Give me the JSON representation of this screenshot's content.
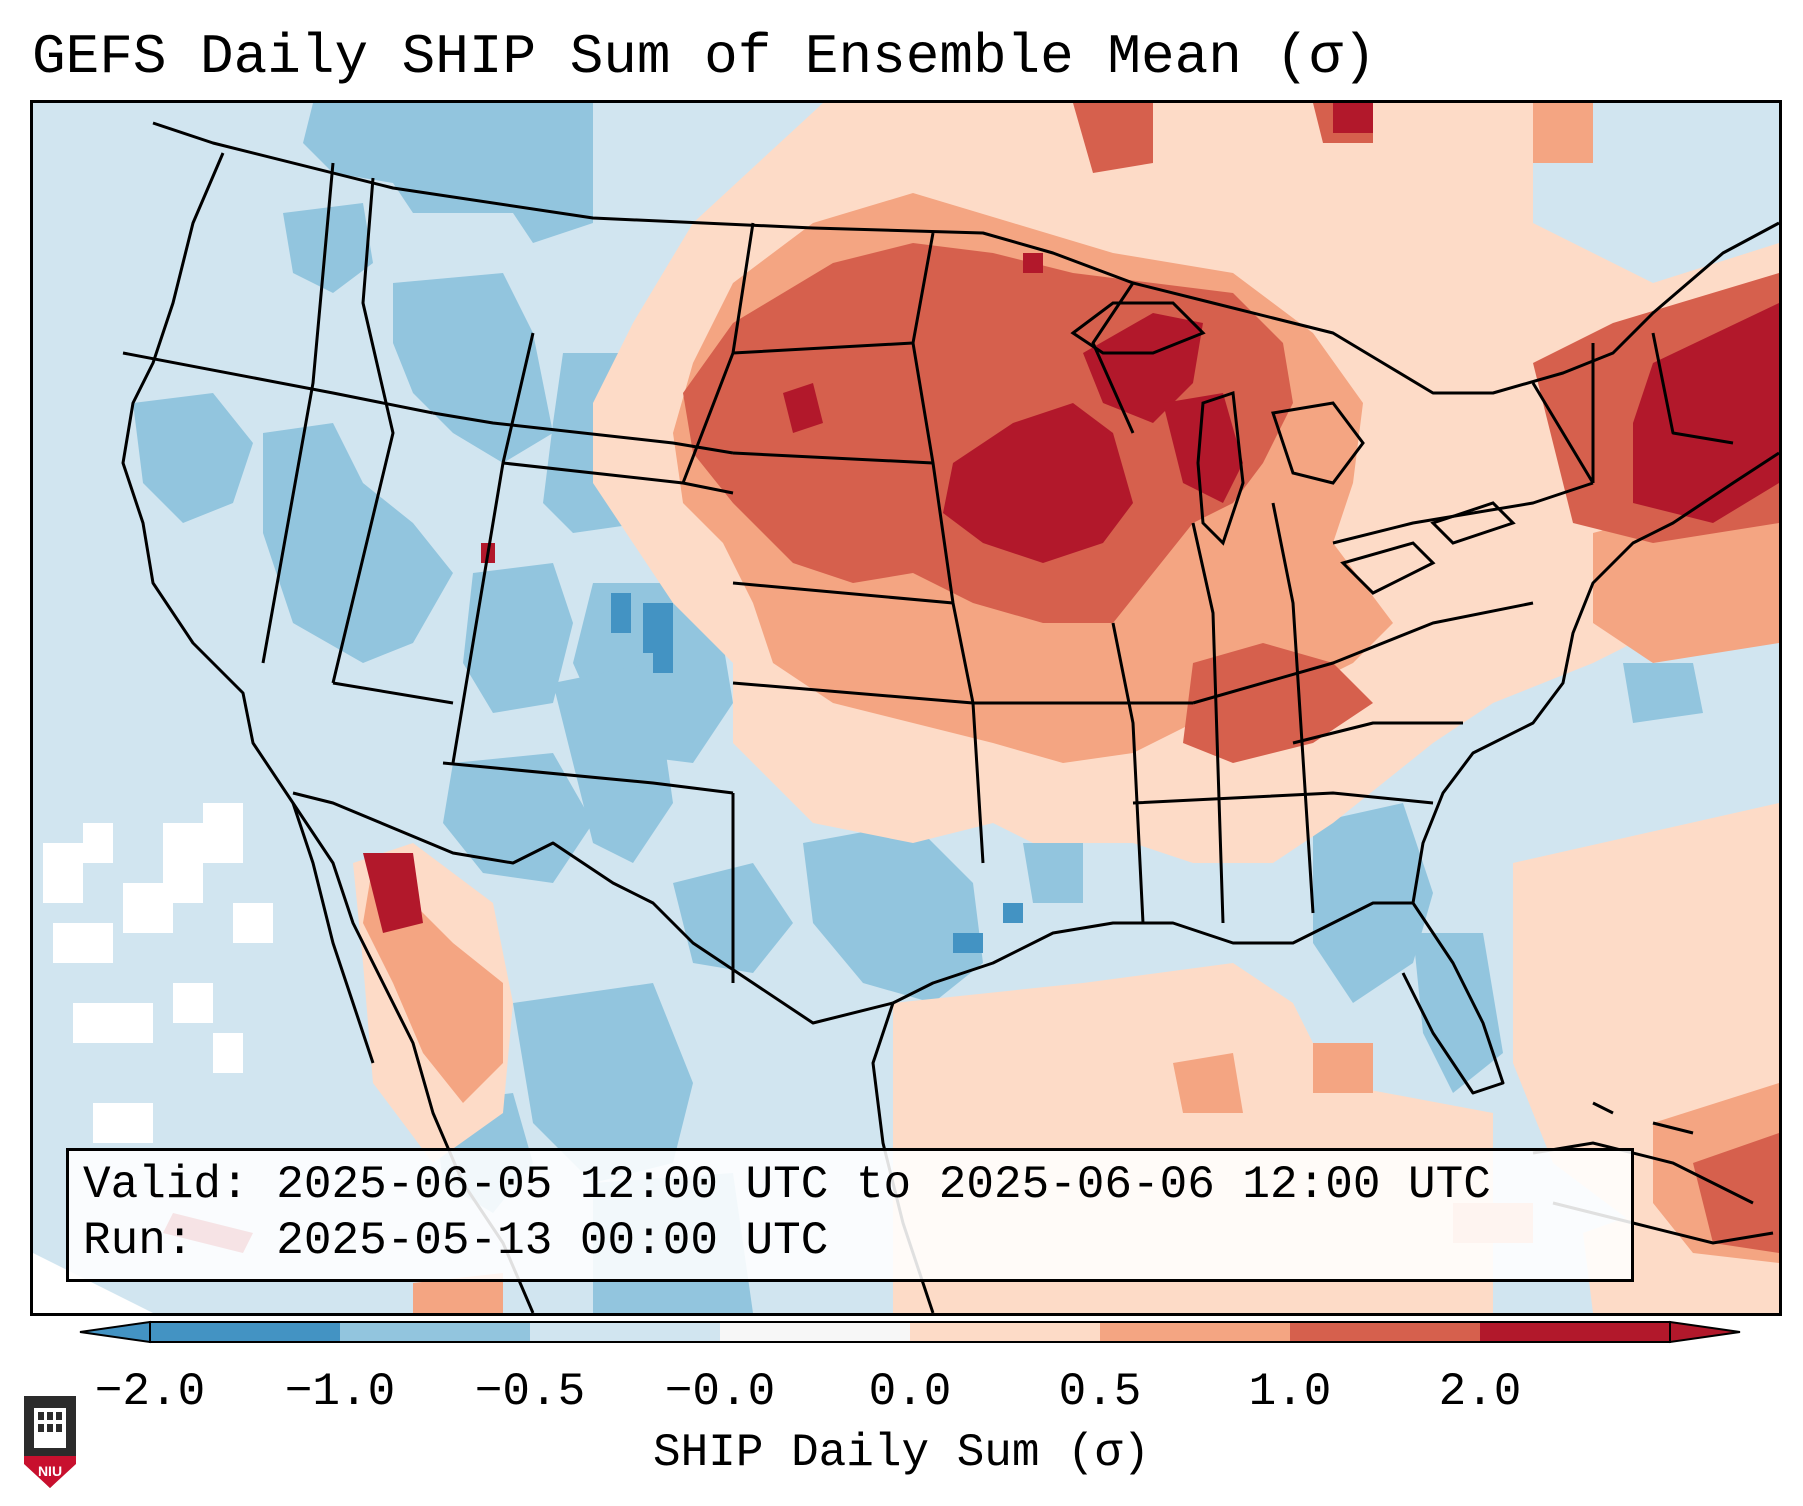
{
  "title": "GEFS Daily SHIP Sum of Ensemble Mean (σ)",
  "info": {
    "valid_label": "Valid:",
    "valid_value": "2025-06-05 12:00 UTC to 2025-06-06 12:00 UTC",
    "run_label": "Run:",
    "run_value": "2025-05-13 00:00 UTC"
  },
  "colorbar": {
    "label": "SHIP Daily Sum (σ)",
    "ticks": [
      "−2.0",
      "−1.0",
      "−0.5",
      "−0.0",
      "0.0",
      "0.5",
      "1.0",
      "2.0"
    ],
    "colors": [
      "#4393c3",
      "#92c5de",
      "#d1e5f0",
      "#f7f7f7",
      "#fddbc7",
      "#f4a582",
      "#d6604d",
      "#b2182b"
    ]
  },
  "logo": {
    "text": "NIU",
    "colors": {
      "shield": "#c8102e",
      "tower": "#2b2b2b"
    }
  },
  "map": {
    "region": "Contiguous United States",
    "background_color": "#d1e5f0",
    "anomaly_colors": {
      "strong_negative": "#4393c3",
      "moderate_negative": "#92c5de",
      "weak_negative": "#d1e5f0",
      "near_zero": "#ffffff",
      "weak_positive": "#fddbc7",
      "moderate_positive": "#f4a582",
      "strong_positive": "#d6604d",
      "very_strong_positive": "#b2182b"
    }
  }
}
